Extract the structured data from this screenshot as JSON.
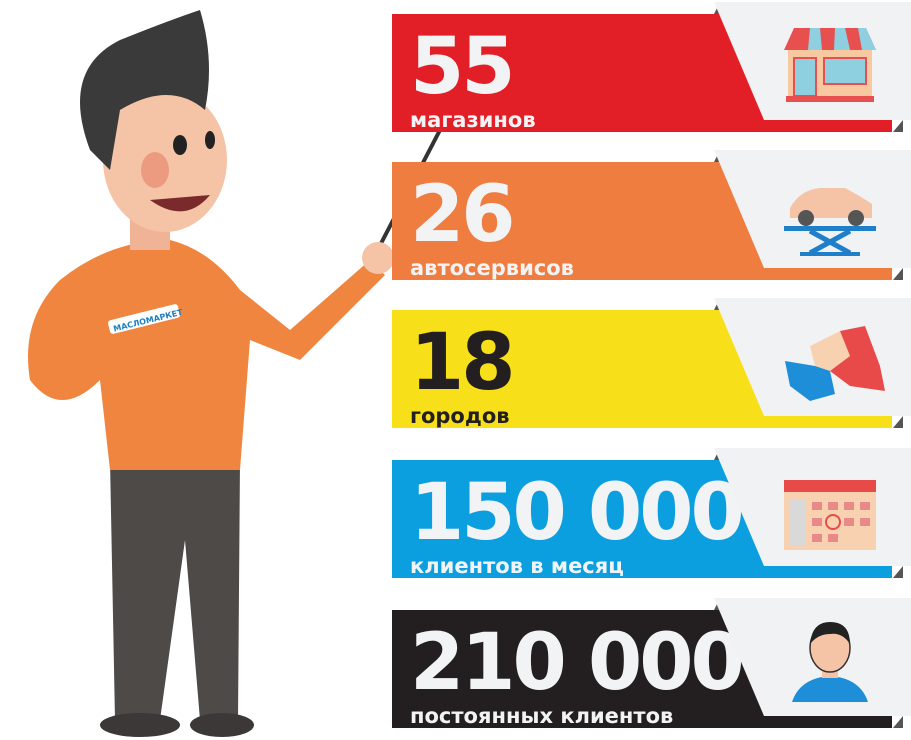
{
  "logo_text": "МАСЛОМАРКЕТ",
  "stats": [
    {
      "number": "55",
      "label": "магазинов",
      "color": "#e21f26",
      "icon": "shop-icon"
    },
    {
      "number": "26",
      "label": "автосервисов",
      "color": "#ee7d3f",
      "icon": "car-lift-icon"
    },
    {
      "number": "18",
      "label": "городов",
      "color": "#f7e01a",
      "icon": "map-icon"
    },
    {
      "number": "150 000",
      "label": "клиентов в месяц",
      "color": "#0c9fdf",
      "icon": "calendar-icon"
    },
    {
      "number": "210 000",
      "label": "постоянных клиентов",
      "color": "#231f20",
      "icon": "customer-icon"
    }
  ]
}
